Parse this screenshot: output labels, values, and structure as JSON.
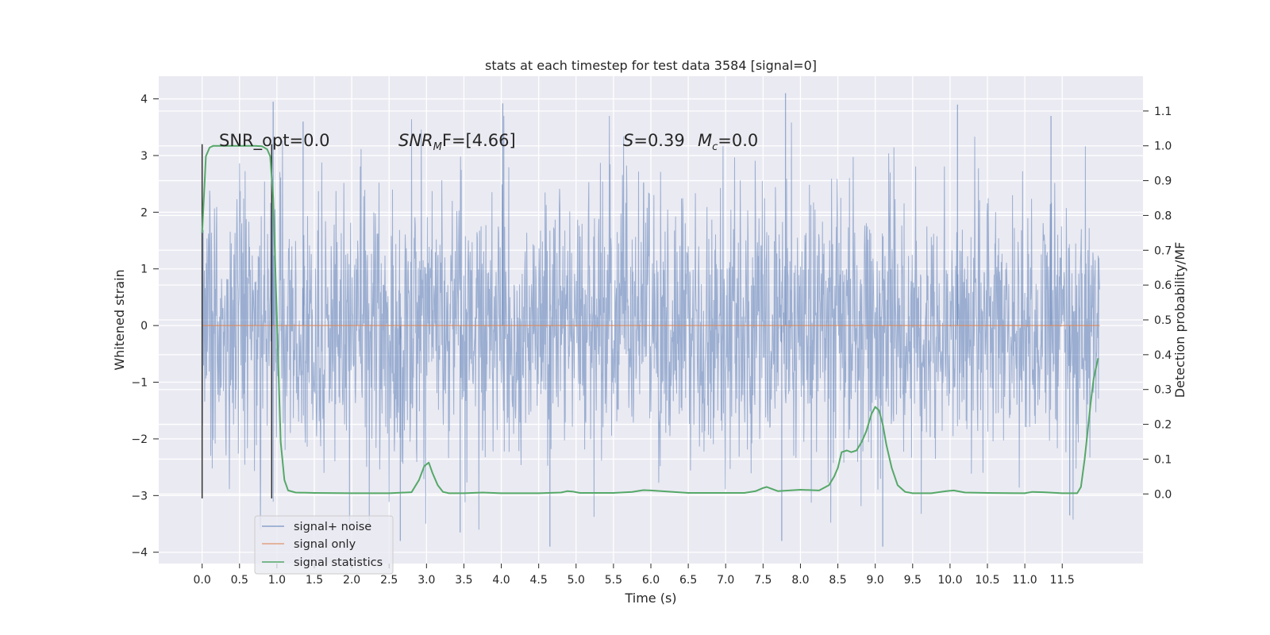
{
  "chart_data": {
    "type": "line",
    "title": "stats at each timestep for test data 3584 [signal=0]",
    "xlabel": "Time (s)",
    "ylabel": "Whitened strain",
    "ylabel_right": "Detection probability/MF",
    "xlim": [
      -0.58,
      12.58
    ],
    "ylim": [
      -4.2,
      4.4
    ],
    "ylim_right": [
      -0.2,
      1.2
    ],
    "xticks": [
      "0.0",
      "0.5",
      "1.0",
      "1.5",
      "2.0",
      "2.5",
      "3.0",
      "3.5",
      "4.0",
      "4.5",
      "5.0",
      "5.5",
      "6.0",
      "6.5",
      "7.0",
      "7.5",
      "8.0",
      "8.5",
      "9.0",
      "9.5",
      "10.0",
      "10.5",
      "11.0",
      "11.5"
    ],
    "yticks": [
      "−4",
      "−3",
      "−2",
      "−1",
      "0",
      "1",
      "2",
      "3",
      "4"
    ],
    "yticks_right": [
      "0.0",
      "0.1",
      "0.2",
      "0.3",
      "0.4",
      "0.5",
      "0.6",
      "0.7",
      "0.8",
      "0.9",
      "1.0",
      "1.1"
    ],
    "grid": true,
    "legend_position": "lower-left",
    "colors": {
      "plot_bg": "#eaeaf2",
      "noise": "#4c72b0",
      "signal": "#dd8452",
      "stats": "#55a868",
      "marker": "#333333"
    },
    "series": [
      {
        "name": "signal+ noise",
        "kind": "noise",
        "x_range": [
          0.0,
          12.0
        ],
        "band_1sigma": [
          -1.15,
          1.15
        ],
        "notable_peaks": [
          [
            0.95,
            3.95
          ],
          [
            4.02,
            3.92
          ],
          [
            7.8,
            4.1
          ],
          [
            10.1,
            3.9
          ],
          [
            11.35,
            3.7
          ],
          [
            1.35,
            3.6
          ]
        ],
        "notable_troughs": [
          [
            2.65,
            -3.8
          ],
          [
            4.65,
            -3.9
          ],
          [
            7.75,
            -3.8
          ],
          [
            9.1,
            -3.9
          ],
          [
            11.6,
            -3.35
          ],
          [
            3.45,
            -3.65
          ]
        ]
      },
      {
        "name": "signal only",
        "kind": "line",
        "x": [
          0.0,
          12.0
        ],
        "y": [
          0.0,
          0.0
        ]
      },
      {
        "name": "signal statistics",
        "kind": "line",
        "axis": "right",
        "x": [
          0.0,
          0.05,
          0.1,
          0.15,
          0.25,
          0.5,
          0.7,
          0.8,
          0.87,
          0.91,
          0.95,
          1.0,
          1.05,
          1.1,
          1.15,
          1.25,
          1.5,
          2.0,
          2.5,
          2.8,
          2.9,
          2.97,
          3.03,
          3.08,
          3.15,
          3.22,
          3.3,
          3.5,
          3.75,
          4.0,
          4.5,
          4.8,
          4.88,
          4.95,
          5.05,
          5.5,
          5.75,
          5.9,
          6.0,
          6.5,
          7.0,
          7.25,
          7.4,
          7.5,
          7.55,
          7.6,
          7.7,
          8.0,
          8.25,
          8.38,
          8.45,
          8.5,
          8.55,
          8.62,
          8.68,
          8.75,
          8.82,
          8.88,
          8.95,
          9.0,
          9.05,
          9.1,
          9.15,
          9.22,
          9.3,
          9.4,
          9.5,
          9.75,
          9.95,
          10.05,
          10.2,
          10.5,
          11.0,
          11.1,
          11.25,
          11.5,
          11.7,
          11.75,
          11.8,
          11.85,
          11.88,
          11.92,
          11.95,
          11.98
        ],
        "y": [
          0.75,
          0.97,
          0.995,
          1.0,
          1.0,
          1.0,
          1.0,
          0.999,
          0.99,
          0.97,
          0.85,
          0.5,
          0.15,
          0.04,
          0.01,
          0.004,
          0.003,
          0.002,
          0.002,
          0.005,
          0.04,
          0.08,
          0.09,
          0.06,
          0.025,
          0.006,
          0.002,
          0.002,
          0.004,
          0.002,
          0.002,
          0.004,
          0.008,
          0.007,
          0.003,
          0.003,
          0.006,
          0.011,
          0.01,
          0.003,
          0.003,
          0.003,
          0.008,
          0.017,
          0.02,
          0.016,
          0.008,
          0.012,
          0.01,
          0.025,
          0.05,
          0.075,
          0.12,
          0.125,
          0.12,
          0.125,
          0.15,
          0.18,
          0.23,
          0.25,
          0.24,
          0.2,
          0.14,
          0.075,
          0.025,
          0.006,
          0.002,
          0.002,
          0.008,
          0.01,
          0.004,
          0.003,
          0.002,
          0.006,
          0.005,
          0.002,
          0.002,
          0.02,
          0.1,
          0.2,
          0.26,
          0.33,
          0.36,
          0.39
        ]
      }
    ],
    "vertical_markers": [
      {
        "x": 0.0,
        "y_range": [
          -3.05,
          3.2
        ]
      },
      {
        "x": 0.93,
        "y_range": [
          -3.05,
          3.2
        ]
      }
    ],
    "annotations": {
      "snr_opt": "SNR_opt=0.0",
      "snr_mf_label": "SNR",
      "snr_mf_sub": "M",
      "snr_mf_rest": "F=[4.66]",
      "s_label": "S",
      "s_value": "=0.39",
      "mc_label": "M",
      "mc_sub": "c",
      "mc_value": "=0.0"
    }
  }
}
